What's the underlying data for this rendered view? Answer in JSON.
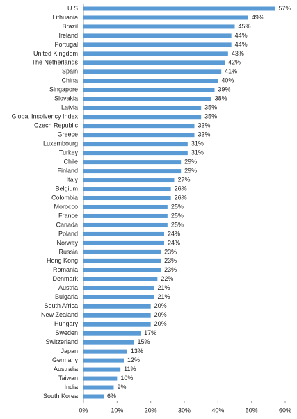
{
  "chart_data": {
    "type": "bar",
    "orientation": "horizontal",
    "color": "#5b9bd5",
    "categories": [
      "U.S",
      "Lithuania",
      "Brazil",
      "Ireland",
      "Portugal",
      "United Kingdom",
      "The Netherlands",
      "Spain",
      "China",
      "Singapore",
      "Slovakia",
      "Latvia",
      "Global Insolvency Index",
      "Czech Republic",
      "Greece",
      "Luxembourg",
      "Turkey",
      "Chile",
      "Finland",
      "Italy",
      "Belgium",
      "Colombia",
      "Morocco",
      "France",
      "Canada",
      "Poland",
      "Norway",
      "Russia",
      "Hong Kong",
      "Romania",
      "Denmark",
      "Austria",
      "Bulgaria",
      "South Africa",
      "New Zealand",
      "Hungary",
      "Sweden",
      "Switzerland",
      "Japan",
      "Germany",
      "Australia",
      "Taiwan",
      "India",
      "South Korea"
    ],
    "values": [
      57,
      49,
      45,
      44,
      44,
      43,
      42,
      41,
      40,
      39,
      38,
      35,
      35,
      33,
      33,
      31,
      31,
      29,
      29,
      27,
      26,
      26,
      25,
      25,
      25,
      24,
      24,
      23,
      23,
      23,
      22,
      21,
      21,
      20,
      20,
      20,
      17,
      15,
      13,
      12,
      11,
      10,
      9,
      6
    ],
    "value_labels": [
      "57%",
      "49%",
      "45%",
      "44%",
      "44%",
      "43%",
      "42%",
      "41%",
      "40%",
      "39%",
      "38%",
      "35%",
      "35%",
      "33%",
      "33%",
      "31%",
      "31%",
      "29%",
      "29%",
      "27%",
      "26%",
      "26%",
      "25%",
      "25%",
      "25%",
      "24%",
      "24%",
      "23%",
      "23%",
      "23%",
      "22%",
      "21%",
      "21%",
      "20%",
      "20%",
      "20%",
      "17%",
      "15%",
      "13%",
      "12%",
      "11%",
      "10%",
      "9%",
      "6%"
    ],
    "xlim": [
      0,
      60
    ],
    "xticks": [
      {
        "value": 0,
        "label": "0%"
      },
      {
        "value": 10,
        "label": "10%"
      },
      {
        "value": 20,
        "label": "20%"
      },
      {
        "value": 30,
        "label": "30%"
      },
      {
        "value": 40,
        "label": "40%"
      },
      {
        "value": 50,
        "label": "50%"
      },
      {
        "value": 60,
        "label": "60%"
      }
    ]
  }
}
